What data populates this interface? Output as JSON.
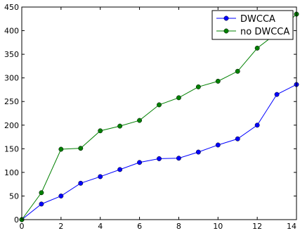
{
  "chart_data": {
    "type": "line",
    "title": "",
    "xlabel": "",
    "ylabel": "",
    "xlim": [
      0,
      14
    ],
    "ylim": [
      0,
      450
    ],
    "xticks": [
      "0",
      "2",
      "4",
      "6",
      "8",
      "10",
      "12",
      "14"
    ],
    "yticks": [
      "0",
      "50",
      "100",
      "150",
      "200",
      "250",
      "300",
      "350",
      "400",
      "450"
    ],
    "grid": false,
    "legend_position": "top-right",
    "x": [
      0,
      1,
      2,
      3,
      4,
      5,
      6,
      7,
      8,
      9,
      10,
      11,
      12,
      13,
      14
    ],
    "series": [
      {
        "name": "DWCCA",
        "color": "#0000ff",
        "marker": "circle",
        "values": [
          0,
          33,
          50,
          77,
          91,
          106,
          121,
          129,
          130,
          143,
          158,
          171,
          200,
          265,
          286
        ]
      },
      {
        "name": "no DWCCA",
        "color": "#008000",
        "marker": "circle",
        "values": [
          0,
          57,
          149,
          151,
          188,
          198,
          210,
          243,
          258,
          281,
          293,
          314,
          363,
          395,
          435
        ]
      }
    ]
  }
}
